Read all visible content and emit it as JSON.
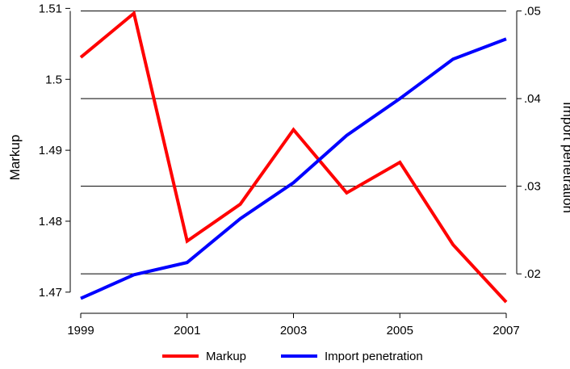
{
  "chart_data": {
    "type": "line",
    "xlabel": "",
    "ylabel": "Markup",
    "y2label": "Import penetration",
    "x": [
      1999,
      2000,
      2001,
      2002,
      2003,
      2004,
      2005,
      2006,
      2007
    ],
    "xticks": [
      1999,
      2001,
      2003,
      2005,
      2007
    ],
    "xtick_labels": [
      "1999",
      "2001",
      "2003",
      "2005",
      "2007"
    ],
    "xlim": [
      1999,
      2007
    ],
    "ylim": [
      1.4685,
      1.5105
    ],
    "yticks": [
      1.47,
      1.48,
      1.49,
      1.5,
      1.51
    ],
    "ytick_labels": [
      "1.47",
      "1.48",
      "1.49",
      "1.5",
      "1.51"
    ],
    "y2lim": [
      0.0167,
      0.0507
    ],
    "y2ticks": [
      0.02,
      0.03,
      0.04,
      0.05
    ],
    "y2tick_labels": [
      ".02",
      ".03",
      ".04",
      ".05"
    ],
    "grid": "horizontal lines at right-axis ticks",
    "legend_position": "bottom",
    "series": [
      {
        "name": "Markup",
        "axis": "left",
        "color": "#ff0000",
        "values": [
          1.5031,
          1.5093,
          1.4772,
          1.4824,
          1.4929,
          1.484,
          1.4883,
          1.4767,
          1.4686
        ]
      },
      {
        "name": "Import penetration",
        "axis": "right",
        "color": "#0000ff",
        "values": [
          0.0172,
          0.0199,
          0.0213,
          0.0263,
          0.0304,
          0.0358,
          0.04,
          0.0445,
          0.0468
        ]
      }
    ]
  }
}
